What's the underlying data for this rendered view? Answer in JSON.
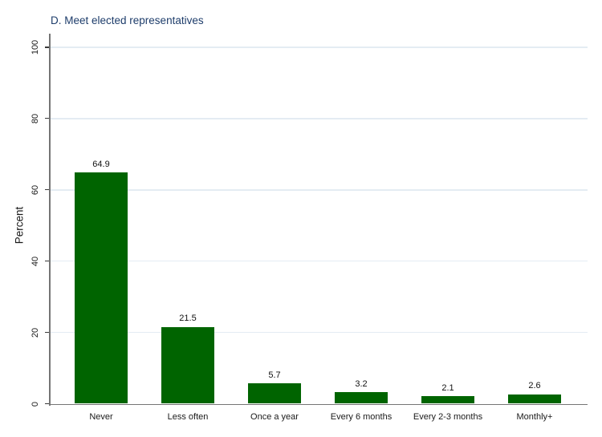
{
  "chart_data": {
    "type": "bar",
    "title": "D. Meet elected representatives",
    "xlabel": "",
    "ylabel": "Percent",
    "categories": [
      "Never",
      "Less often",
      "Once a year",
      "Every 6 months",
      "Every 2-3 months",
      "Monthly+"
    ],
    "values": [
      64.9,
      21.5,
      5.7,
      3.2,
      2.1,
      2.6
    ],
    "value_labels": [
      "64.9",
      "21.5",
      "5.7",
      "3.2",
      "2.1",
      "2.6"
    ],
    "yticks": [
      0,
      20,
      40,
      60,
      80,
      100
    ],
    "ylim": [
      0,
      100
    ],
    "grid": true,
    "legend_position": "none",
    "colors": {
      "bar": "#006400",
      "title": "#1e3d6b",
      "gridline": "#e4ecf3",
      "axis": "#757575",
      "tick_mark": "#3a3a3a",
      "text": "#1a1a1a",
      "background": "#ffffff"
    }
  }
}
